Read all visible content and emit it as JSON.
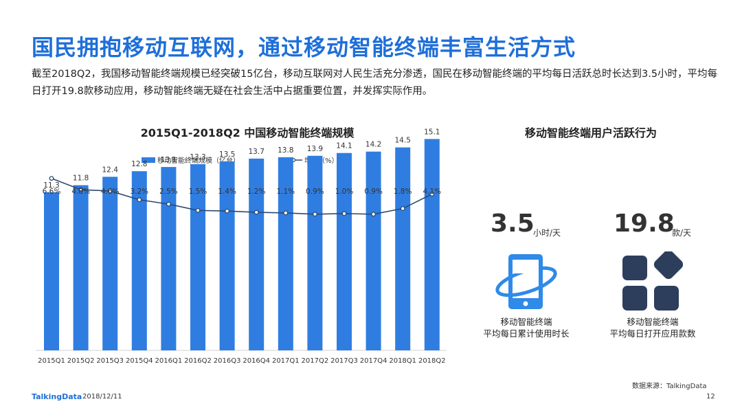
{
  "slide": {
    "title": "国民拥抱移动互联网，通过移动智能终端丰富生活方式",
    "intro": "截至2018Q2，我国移动智能终端规模已经突破15亿台，移动互联网对人民生活充分渗透，国民在移动智能终端的平均每日活跃总时长达到3.5小时，平均每日打开19.8款移动应用，移动智能终端无疑在社会生活中占据重要位置，并发挥实际作用。"
  },
  "chart_data": {
    "type": "bar",
    "title": "2015Q1-2018Q2 中国移动智能终端规模",
    "categories": [
      "2015Q1",
      "2015Q2",
      "2015Q3",
      "2015Q4",
      "2016Q1",
      "2016Q2",
      "2016Q3",
      "2016Q4",
      "2017Q1",
      "2017Q2",
      "2017Q3",
      "2017Q4",
      "2018Q1",
      "2018Q2"
    ],
    "series": [
      {
        "name": "移动智能终端规模（亿台）",
        "type": "bar",
        "color": "#2f7de1",
        "values": [
          11.3,
          11.8,
          12.4,
          12.8,
          13.1,
          13.3,
          13.5,
          13.7,
          13.8,
          13.9,
          14.1,
          14.2,
          14.5,
          15.1
        ],
        "labels": [
          "11.3",
          "11.8",
          "12.4",
          "12.8",
          "13.1",
          "13.3",
          "13.5",
          "13.7",
          "13.8",
          "13.9",
          "14.1",
          "14.2",
          "14.5",
          "15.1"
        ]
      },
      {
        "name": "增速（%）",
        "type": "line",
        "color": "#2c4a6e",
        "values": [
          6.6,
          4.8,
          4.6,
          3.2,
          2.5,
          1.5,
          1.4,
          1.2,
          1.1,
          0.9,
          1.0,
          0.9,
          1.8,
          4.1
        ],
        "labels": [
          "6.6%",
          "4.8%",
          "4.6%",
          "3.2%",
          "2.5%",
          "1.5%",
          "1.4%",
          "1.2%",
          "1.1%",
          "0.9%",
          "1.0%",
          "0.9%",
          "1.8%",
          "4.1%"
        ]
      }
    ],
    "legend_position": "top",
    "grid": false,
    "bar_ylim": [
      0,
      16
    ],
    "line_ylim": [
      0,
      7
    ]
  },
  "behavior": {
    "title": "移动智能终端用户活跃行为",
    "stats": [
      {
        "value": "3.5",
        "unit": "小时/天",
        "label_line1": "移动智能终端",
        "label_line2": "平均每日累计使用时长",
        "icon": "smartphone-icon"
      },
      {
        "value": "19.8",
        "unit": "款/天",
        "label_line1": "移动智能终端",
        "label_line2": "平均每日打开应用款数",
        "icon": "app-grid-icon"
      }
    ]
  },
  "footer": {
    "source": "数据来源：TalkingData",
    "brand": "TalkingData",
    "date": "2018/12/11",
    "page": "12"
  },
  "colors": {
    "accent": "#1e6fd9",
    "bar": "#2f7de1",
    "line": "#2c4a6e",
    "icon_light": "#2f8ae8",
    "icon_dark": "#2c3e5c"
  }
}
